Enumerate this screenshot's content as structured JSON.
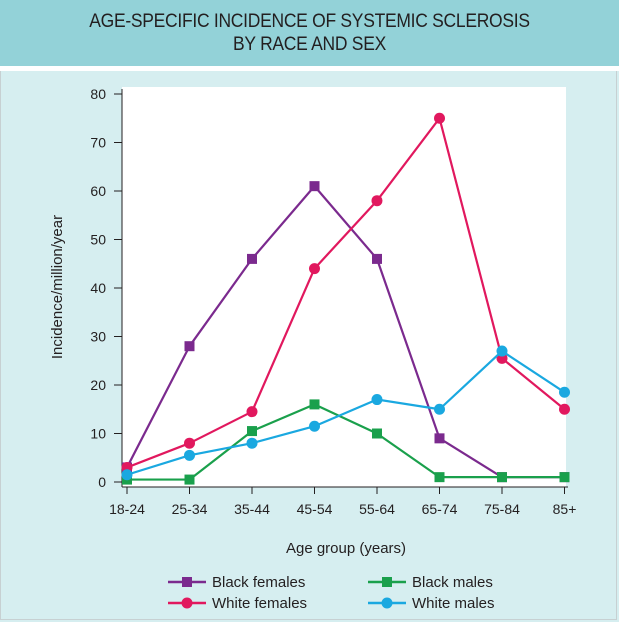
{
  "chart_data": {
    "type": "line",
    "title": "AGE-SPECIFIC INCIDENCE OF SYSTEMIC SCLEROSIS BY RACE AND SEX",
    "title_lines": [
      "AGE-SPECIFIC INCIDENCE OF SYSTEMIC SCLEROSIS",
      "BY RACE AND SEX"
    ],
    "xlabel": "Age group (years)",
    "ylabel": "Incidence/million/year",
    "categories": [
      "18-24",
      "25-34",
      "35-44",
      "45-54",
      "55-64",
      "65-74",
      "75-84",
      "85+"
    ],
    "ylim": [
      0,
      80
    ],
    "yticks": [
      0,
      10,
      20,
      30,
      40,
      50,
      60,
      70,
      80
    ],
    "grid": false,
    "legend_position": "bottom",
    "series": [
      {
        "name": "Black females",
        "color": "#7b2a8e",
        "marker": "square",
        "values": [
          3,
          28,
          46,
          61,
          46,
          9,
          1,
          1
        ]
      },
      {
        "name": "White females",
        "color": "#e1185e",
        "marker": "circle",
        "values": [
          3,
          8,
          14.5,
          44,
          58,
          75,
          25.5,
          15
        ]
      },
      {
        "name": "Black males",
        "color": "#1aa04c",
        "marker": "square",
        "values": [
          0.5,
          0.5,
          10.5,
          16,
          10,
          1,
          1,
          1
        ]
      },
      {
        "name": "White males",
        "color": "#1aa8e0",
        "marker": "circle",
        "values": [
          1.5,
          5.5,
          8,
          11.5,
          17,
          15,
          27,
          18.5
        ]
      }
    ]
  }
}
